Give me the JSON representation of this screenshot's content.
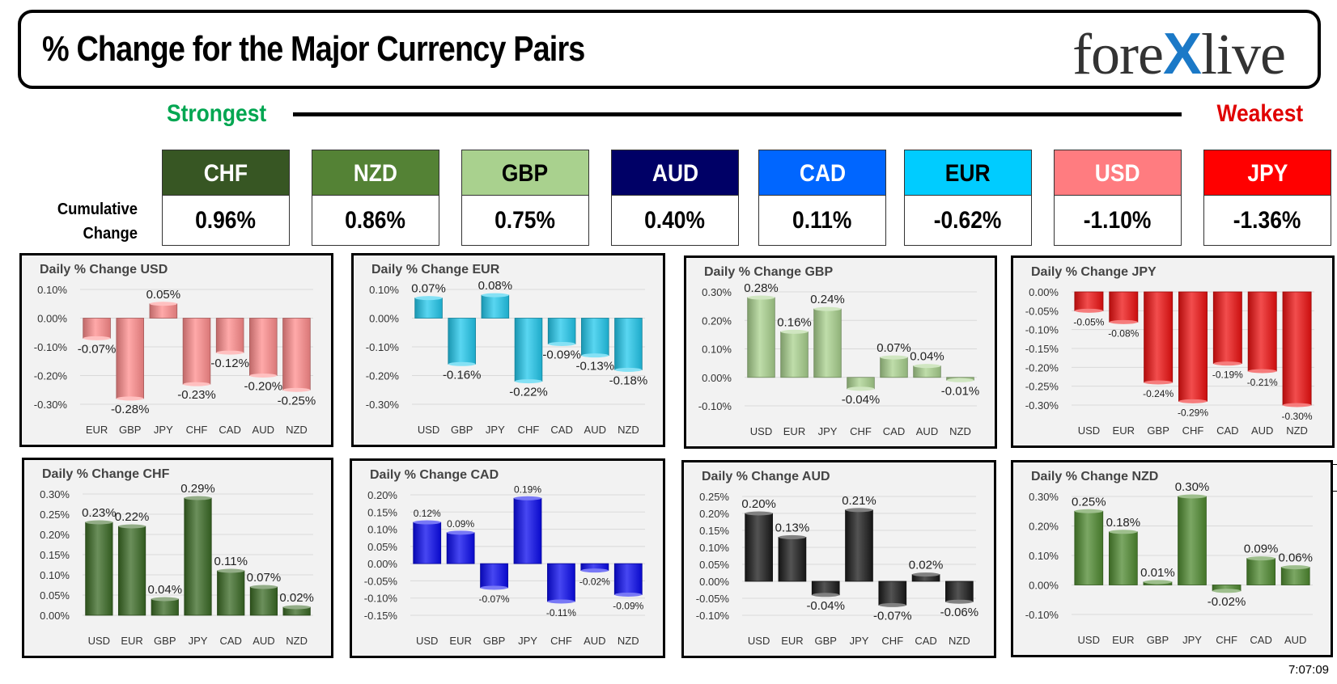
{
  "header": {
    "title": "% Change for the Major Currency Pairs",
    "logo_left": "fore",
    "logo_x": "X",
    "logo_right": "live"
  },
  "ranking": {
    "strongest_label": "Strongest",
    "weakest_label": "Weakest",
    "cumulative_label_line1": "Cumulative",
    "cumulative_label_line2": "Change",
    "currencies": [
      {
        "code": "CHF",
        "value": "0.96%",
        "bg": "#375623",
        "fg": "#ffffff"
      },
      {
        "code": "NZD",
        "value": "0.86%",
        "bg": "#548235",
        "fg": "#ffffff"
      },
      {
        "code": "GBP",
        "value": "0.75%",
        "bg": "#a9d18e",
        "fg": "#000000"
      },
      {
        "code": "AUD",
        "value": "0.40%",
        "bg": "#000066",
        "fg": "#ffffff"
      },
      {
        "code": "CAD",
        "value": "0.11%",
        "bg": "#0066ff",
        "fg": "#ffffff"
      },
      {
        "code": "EUR",
        "value": "-0.62%",
        "bg": "#00ccff",
        "fg": "#000000"
      },
      {
        "code": "USD",
        "value": "-1.10%",
        "bg": "#ff7c80",
        "fg": "#ffffff"
      },
      {
        "code": "JPY",
        "value": "-1.36%",
        "bg": "#ff0000",
        "fg": "#ffffff"
      }
    ]
  },
  "timestamp": "7:07:09",
  "chart_data": [
    {
      "type": "bar",
      "title": "Daily % Change USD",
      "categories": [
        "EUR",
        "GBP",
        "JPY",
        "CHF",
        "CAD",
        "AUD",
        "NZD"
      ],
      "values": [
        -0.07,
        -0.28,
        0.05,
        -0.23,
        -0.12,
        -0.2,
        -0.25
      ],
      "labels": [
        "-0.07%",
        "-0.28%",
        "0.05%",
        "-0.23%",
        "-0.12%",
        "-0.20%",
        "-0.25%"
      ],
      "yticks": [
        "0.10%",
        "0.00%",
        "-0.10%",
        "-0.20%",
        "-0.30%"
      ],
      "ylim": [
        -0.3,
        0.1
      ],
      "color": "#ff8c8c",
      "grid": true
    },
    {
      "type": "bar",
      "title": "Daily % Change EUR",
      "categories": [
        "USD",
        "GBP",
        "JPY",
        "CHF",
        "CAD",
        "AUD",
        "NZD"
      ],
      "values": [
        0.07,
        -0.16,
        0.08,
        -0.22,
        -0.09,
        -0.13,
        -0.18
      ],
      "labels": [
        "0.07%",
        "-0.16%",
        "0.08%",
        "-0.22%",
        "-0.09%",
        "-0.13%",
        "-0.18%"
      ],
      "yticks": [
        "0.10%",
        "0.00%",
        "-0.10%",
        "-0.20%",
        "-0.30%"
      ],
      "ylim": [
        -0.3,
        0.1
      ],
      "color": "#22c8ec",
      "grid": true
    },
    {
      "type": "bar",
      "title": "Daily % Change GBP",
      "categories": [
        "USD",
        "EUR",
        "JPY",
        "CHF",
        "CAD",
        "AUD",
        "NZD"
      ],
      "values": [
        0.28,
        0.16,
        0.24,
        -0.04,
        0.07,
        0.04,
        -0.01
      ],
      "labels": [
        "0.28%",
        "0.16%",
        "0.24%",
        "-0.04%",
        "0.07%",
        "0.04%",
        "-0.01%"
      ],
      "yticks": [
        "0.30%",
        "0.20%",
        "0.10%",
        "0.00%",
        "-0.10%"
      ],
      "ylim": [
        -0.1,
        0.3
      ],
      "color": "#a9d18e",
      "grid": true
    },
    {
      "type": "bar",
      "title": "Daily % Change JPY",
      "categories": [
        "USD",
        "EUR",
        "GBP",
        "CHF",
        "CAD",
        "AUD",
        "NZD"
      ],
      "values": [
        -0.05,
        -0.08,
        -0.24,
        -0.29,
        -0.19,
        -0.21,
        -0.3
      ],
      "labels": [
        "-0.05%",
        "-0.08%",
        "-0.24%",
        "-0.29%",
        "-0.19%",
        "-0.21%",
        "-0.30%"
      ],
      "yticks": [
        "0.00%",
        "-0.05%",
        "-0.10%",
        "-0.15%",
        "-0.20%",
        "-0.25%",
        "-0.30%"
      ],
      "ylim": [
        -0.3,
        0.0
      ],
      "color": "#ee1111",
      "grid": true
    },
    {
      "type": "bar",
      "title": "Daily % Change CHF",
      "categories": [
        "USD",
        "EUR",
        "GBP",
        "JPY",
        "CAD",
        "AUD",
        "NZD"
      ],
      "values": [
        0.23,
        0.22,
        0.04,
        0.29,
        0.11,
        0.07,
        0.02
      ],
      "labels": [
        "0.23%",
        "0.22%",
        "0.04%",
        "0.29%",
        "0.11%",
        "0.07%",
        "0.02%"
      ],
      "yticks": [
        "0.30%",
        "0.25%",
        "0.20%",
        "0.15%",
        "0.10%",
        "0.05%",
        "0.00%"
      ],
      "ylim": [
        0.0,
        0.3
      ],
      "color": "#3a6a24",
      "grid": true
    },
    {
      "type": "bar",
      "title": "Daily % Change CAD",
      "categories": [
        "USD",
        "EUR",
        "GBP",
        "JPY",
        "CHF",
        "AUD",
        "NZD"
      ],
      "values": [
        0.12,
        0.09,
        -0.07,
        0.19,
        -0.11,
        -0.02,
        -0.09
      ],
      "labels": [
        "0.12%",
        "0.09%",
        "-0.07%",
        "0.19%",
        "-0.11%",
        "-0.02%",
        "-0.09%"
      ],
      "yticks": [
        "0.20%",
        "0.15%",
        "0.10%",
        "0.05%",
        "0.00%",
        "-0.05%",
        "-0.10%",
        "-0.15%"
      ],
      "ylim": [
        -0.15,
        0.2
      ],
      "color": "#0a0aee",
      "grid": true
    },
    {
      "type": "bar",
      "title": "Daily % Change AUD",
      "categories": [
        "USD",
        "EUR",
        "GBP",
        "JPY",
        "CHF",
        "CAD",
        "NZD"
      ],
      "values": [
        0.2,
        0.13,
        -0.04,
        0.21,
        -0.07,
        0.02,
        -0.06
      ],
      "labels": [
        "0.20%",
        "0.13%",
        "-0.04%",
        "0.21%",
        "-0.07%",
        "0.02%",
        "-0.06%"
      ],
      "yticks": [
        "0.25%",
        "0.20%",
        "0.15%",
        "0.10%",
        "0.05%",
        "0.00%",
        "-0.05%",
        "-0.10%"
      ],
      "ylim": [
        -0.1,
        0.25
      ],
      "color": "#1a1a1a",
      "grid": true
    },
    {
      "type": "bar",
      "title": "Daily % Change NZD",
      "categories": [
        "USD",
        "EUR",
        "GBP",
        "JPY",
        "CHF",
        "CAD",
        "AUD"
      ],
      "values": [
        0.25,
        0.18,
        0.01,
        0.3,
        -0.02,
        0.09,
        0.06
      ],
      "labels": [
        "0.25%",
        "0.18%",
        "0.01%",
        "0.30%",
        "-0.02%",
        "0.09%",
        "0.06%"
      ],
      "yticks": [
        "0.30%",
        "0.20%",
        "0.10%",
        "0.00%",
        "-0.10%"
      ],
      "ylim": [
        -0.1,
        0.3
      ],
      "color": "#4f8a30",
      "grid": true
    }
  ]
}
